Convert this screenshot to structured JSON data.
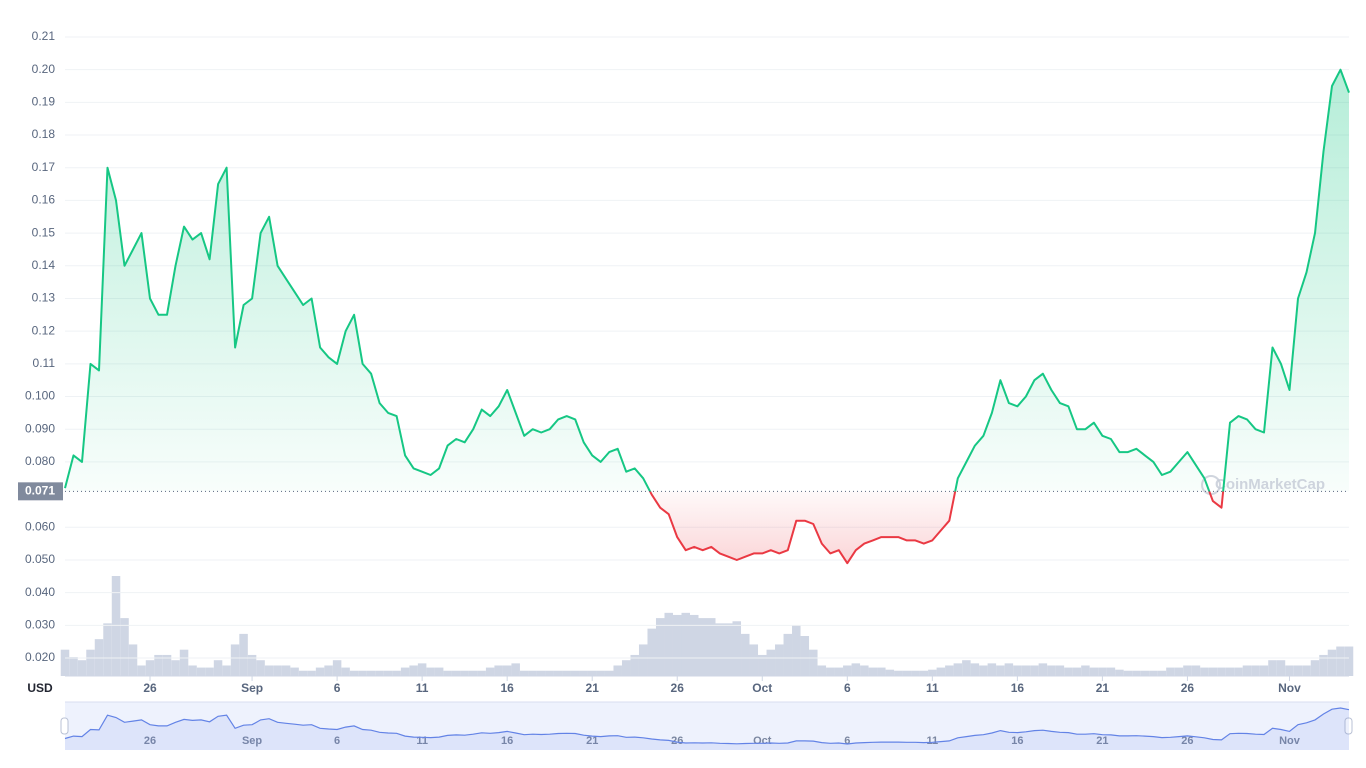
{
  "chart_data": {
    "type": "line",
    "y_label": "USD",
    "watermark": "CoinMarketCap",
    "color_up": "#16c784",
    "color_down": "#ea3943",
    "volume_color": "#cfd6e4",
    "navigator_color": "#6383e6",
    "grid": true,
    "baseline": 0.071,
    "ylim": [
      0.0145,
      0.2152
    ],
    "yticks": [
      {
        "value": 0.02,
        "label": "0.020"
      },
      {
        "value": 0.03,
        "label": "0.030"
      },
      {
        "value": 0.04,
        "label": "0.040"
      },
      {
        "value": 0.05,
        "label": "0.050"
      },
      {
        "value": 0.06,
        "label": "0.060"
      },
      {
        "value": 0.08,
        "label": "0.080"
      },
      {
        "value": 0.09,
        "label": "0.090"
      },
      {
        "value": 0.1,
        "label": "0.100"
      },
      0.11,
      0.12,
      0.13,
      0.14,
      0.15,
      0.16,
      0.17,
      0.18,
      0.19,
      {
        "value": 0.2,
        "label": "0.20"
      },
      0.21
    ],
    "xlim": [
      0,
      151
    ],
    "xticks": [
      {
        "value": 10,
        "label": "26"
      },
      {
        "value": 22,
        "label": "Sep"
      },
      {
        "value": 32,
        "label": "6"
      },
      {
        "value": 42,
        "label": "11"
      },
      {
        "value": 52,
        "label": "16"
      },
      {
        "value": 62,
        "label": "21"
      },
      {
        "value": 72,
        "label": "26"
      },
      {
        "value": 82,
        "label": "Oct"
      },
      {
        "value": 92,
        "label": "6"
      },
      {
        "value": 102,
        "label": "11"
      },
      {
        "value": 112,
        "label": "16"
      },
      {
        "value": 122,
        "label": "21"
      },
      {
        "value": 132,
        "label": "26"
      },
      {
        "value": 144,
        "label": "Nov"
      }
    ],
    "values": [
      0.072,
      0.082,
      0.08,
      0.11,
      0.108,
      0.17,
      0.16,
      0.14,
      0.145,
      0.15,
      0.13,
      0.125,
      0.125,
      0.14,
      0.152,
      0.148,
      0.15,
      0.142,
      0.165,
      0.17,
      0.115,
      0.128,
      0.13,
      0.15,
      0.155,
      0.14,
      0.136,
      0.132,
      0.128,
      0.13,
      0.115,
      0.112,
      0.11,
      0.12,
      0.125,
      0.11,
      0.107,
      0.098,
      0.095,
      0.094,
      0.082,
      0.078,
      0.077,
      0.076,
      0.078,
      0.085,
      0.087,
      0.086,
      0.09,
      0.096,
      0.094,
      0.097,
      0.102,
      0.095,
      0.088,
      0.09,
      0.089,
      0.09,
      0.093,
      0.094,
      0.093,
      0.086,
      0.082,
      0.08,
      0.083,
      0.084,
      0.077,
      0.078,
      0.075,
      0.07,
      0.066,
      0.064,
      0.057,
      0.053,
      0.054,
      0.053,
      0.054,
      0.052,
      0.051,
      0.05,
      0.051,
      0.052,
      0.052,
      0.053,
      0.052,
      0.053,
      0.062,
      0.062,
      0.061,
      0.055,
      0.052,
      0.053,
      0.049,
      0.053,
      0.055,
      0.056,
      0.057,
      0.057,
      0.057,
      0.056,
      0.056,
      0.055,
      0.056,
      0.059,
      0.062,
      0.075,
      0.08,
      0.085,
      0.088,
      0.095,
      0.105,
      0.098,
      0.097,
      0.1,
      0.105,
      0.107,
      0.102,
      0.098,
      0.097,
      0.09,
      0.09,
      0.092,
      0.088,
      0.087,
      0.083,
      0.083,
      0.084,
      0.082,
      0.08,
      0.076,
      0.077,
      0.08,
      0.083,
      0.079,
      0.075,
      0.068,
      0.066,
      0.092,
      0.094,
      0.093,
      0.09,
      0.089,
      0.115,
      0.11,
      0.102,
      0.13,
      0.138,
      0.15,
      0.175,
      0.195,
      0.2,
      0.193
    ],
    "volume": [
      25,
      18,
      15,
      25,
      35,
      50,
      95,
      55,
      30,
      10,
      15,
      20,
      20,
      15,
      25,
      10,
      8,
      8,
      15,
      10,
      30,
      40,
      20,
      15,
      10,
      10,
      10,
      8,
      5,
      5,
      8,
      10,
      15,
      8,
      5,
      5,
      5,
      5,
      5,
      5,
      8,
      10,
      12,
      8,
      8,
      5,
      5,
      5,
      5,
      5,
      8,
      10,
      10,
      12,
      5,
      5,
      5,
      5,
      5,
      5,
      5,
      5,
      5,
      5,
      5,
      10,
      15,
      20,
      30,
      45,
      55,
      60,
      58,
      60,
      58,
      55,
      55,
      50,
      50,
      52,
      40,
      30,
      20,
      25,
      30,
      40,
      48,
      38,
      25,
      10,
      8,
      8,
      10,
      12,
      10,
      8,
      8,
      6,
      5,
      5,
      5,
      5,
      6,
      8,
      10,
      12,
      15,
      12,
      10,
      12,
      10,
      12,
      10,
      10,
      10,
      12,
      10,
      10,
      8,
      8,
      10,
      8,
      8,
      8,
      6,
      5,
      5,
      5,
      5,
      5,
      8,
      8,
      10,
      10,
      8,
      8,
      8,
      8,
      8,
      10,
      10,
      10,
      15,
      15,
      10,
      10,
      10,
      15,
      20,
      25,
      28,
      28
    ]
  }
}
